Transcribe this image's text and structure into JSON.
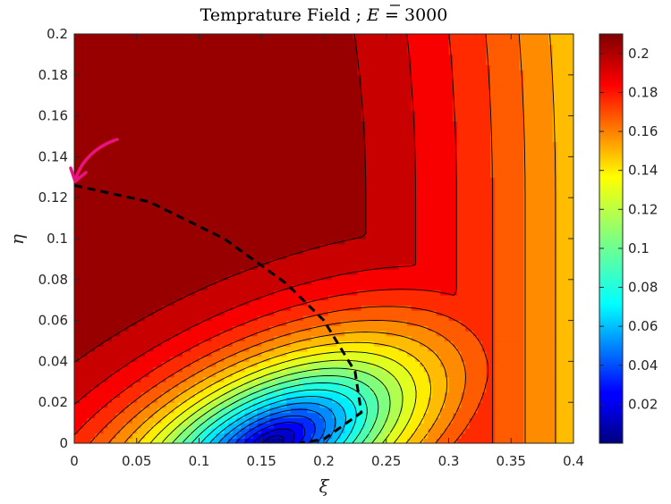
{
  "chart_data": {
    "type": "contour",
    "title": "Temprature Field ; Ē = 3000",
    "title_parts": {
      "prefix": "Temprature Field ; ",
      "symbol": "E",
      "suffix": " = 3000"
    },
    "xlabel": "ξ",
    "ylabel": "η",
    "xlim": [
      0,
      0.4
    ],
    "ylim": [
      0,
      0.2
    ],
    "x_ticks": [
      0,
      0.05,
      0.1,
      0.15,
      0.2,
      0.25,
      0.3,
      0.35,
      0.4
    ],
    "x_tick_labels": [
      "0",
      "0.05",
      "0.1",
      "0.15",
      "0.2",
      "0.25",
      "0.3",
      "0.35",
      "0.4"
    ],
    "y_ticks": [
      0,
      0.02,
      0.04,
      0.06,
      0.08,
      0.1,
      0.12,
      0.14,
      0.16,
      0.18,
      0.2
    ],
    "y_tick_labels": [
      "0",
      "0.02",
      "0.04",
      "0.06",
      "0.08",
      "0.1",
      "0.12",
      "0.14",
      "0.16",
      "0.18",
      "0.2"
    ],
    "colorbar": {
      "colormap": "jet",
      "range": [
        0.0,
        0.21
      ],
      "ticks": [
        0.02,
        0.04,
        0.06,
        0.08,
        0.1,
        0.12,
        0.14,
        0.16,
        0.18,
        0.2
      ],
      "tick_labels": [
        "0.02",
        "0.04",
        "0.06",
        "0.08",
        "0.1",
        "0.12",
        "0.14",
        "0.16",
        "0.18",
        "0.2"
      ]
    },
    "contour_levels_step": 0.01,
    "max_temperature_locus": {
      "style": "thick dashed black",
      "points": [
        [
          0,
          0.126
        ],
        [
          0.06,
          0.118
        ],
        [
          0.12,
          0.1
        ],
        [
          0.17,
          0.078
        ],
        [
          0.2,
          0.06
        ],
        [
          0.225,
          0.035
        ],
        [
          0.23,
          0.015
        ],
        [
          0.2,
          0.002
        ],
        [
          0.18,
          0
        ]
      ]
    },
    "annotation": {
      "type": "arrow",
      "color": "#e8137f",
      "points_to": [
        0,
        0.126
      ]
    }
  }
}
